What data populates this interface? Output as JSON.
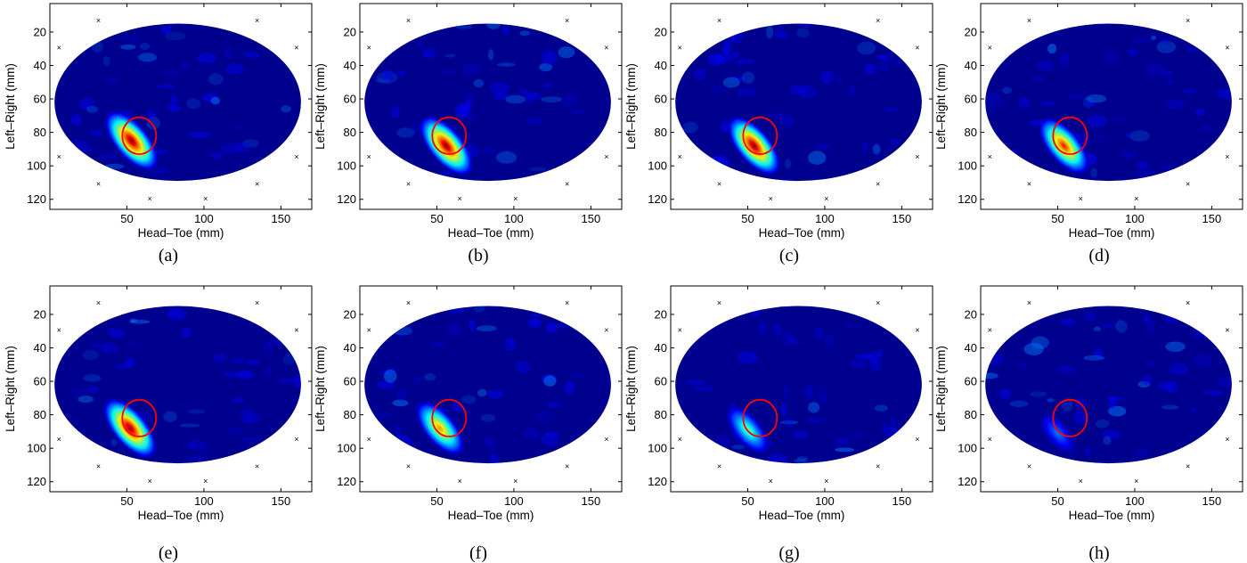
{
  "figure": {
    "marker_color": "#000000",
    "circle_color": "#ff0000",
    "background_color": "#00008f",
    "colormap": [
      "#00008f",
      "#0000ff",
      "#0080ff",
      "#00ffff",
      "#80ff80",
      "#ffff00",
      "#ff8000",
      "#ff0000",
      "#800000"
    ]
  },
  "chart_data": [
    {
      "type": "heatmap",
      "caption": "(a)",
      "xlabel": "Head–Toe (mm)",
      "ylabel": "Left–Right (mm)",
      "xlim": [
        0,
        170
      ],
      "ylim": [
        126,
        3
      ],
      "y_reversed": true,
      "xticks": [
        50,
        100,
        150
      ],
      "yticks": [
        20,
        40,
        60,
        80,
        100,
        120
      ],
      "field": {
        "shape": "ellipse",
        "center": [
          83,
          62
        ],
        "radii": [
          80,
          47
        ]
      },
      "target_circle": {
        "center": [
          58,
          82
        ],
        "radius": 11
      },
      "hotspot": {
        "center": [
          53,
          85
        ],
        "intensity": 1.0
      }
    },
    {
      "type": "heatmap",
      "caption": "(b)",
      "xlabel": "Head–Toe (mm)",
      "ylabel": "Left–Right (mm)",
      "xlim": [
        0,
        170
      ],
      "ylim": [
        126,
        3
      ],
      "y_reversed": true,
      "xticks": [
        50,
        100,
        150
      ],
      "yticks": [
        20,
        40,
        60,
        80,
        100,
        120
      ],
      "field": {
        "shape": "ellipse",
        "center": [
          83,
          62
        ],
        "radii": [
          80,
          47
        ]
      },
      "target_circle": {
        "center": [
          58,
          82
        ],
        "radius": 11
      },
      "hotspot": {
        "center": [
          56,
          88
        ],
        "intensity": 1.0
      }
    },
    {
      "type": "heatmap",
      "caption": "(c)",
      "xlabel": "Head–Toe (mm)",
      "ylabel": "Left–Right (mm)",
      "xlim": [
        0,
        170
      ],
      "ylim": [
        126,
        3
      ],
      "y_reversed": true,
      "xticks": [
        50,
        100,
        150
      ],
      "yticks": [
        20,
        40,
        60,
        80,
        100,
        120
      ],
      "field": {
        "shape": "ellipse",
        "center": [
          83,
          62
        ],
        "radii": [
          80,
          47
        ]
      },
      "target_circle": {
        "center": [
          58,
          82
        ],
        "radius": 11
      },
      "hotspot": {
        "center": [
          54,
          88
        ],
        "intensity": 0.95
      }
    },
    {
      "type": "heatmap",
      "caption": "(d)",
      "xlabel": "Head–Toe (mm)",
      "ylabel": "Left–Right (mm)",
      "xlim": [
        0,
        170
      ],
      "ylim": [
        126,
        3
      ],
      "y_reversed": true,
      "xticks": [
        50,
        100,
        150
      ],
      "yticks": [
        20,
        40,
        60,
        80,
        100,
        120
      ],
      "field": {
        "shape": "ellipse",
        "center": [
          83,
          62
        ],
        "radii": [
          80,
          47
        ]
      },
      "target_circle": {
        "center": [
          58,
          82
        ],
        "radius": 11
      },
      "hotspot": {
        "center": [
          54,
          88
        ],
        "intensity": 0.85
      }
    },
    {
      "type": "heatmap",
      "caption": "(e)",
      "xlabel": "Head–Toe (mm)",
      "ylabel": "Left–Right (mm)",
      "xlim": [
        0,
        170
      ],
      "ylim": [
        126,
        3
      ],
      "y_reversed": true,
      "xticks": [
        50,
        100,
        150
      ],
      "yticks": [
        20,
        40,
        60,
        80,
        100,
        120
      ],
      "field": {
        "shape": "ellipse",
        "center": [
          83,
          62
        ],
        "radii": [
          80,
          47
        ]
      },
      "target_circle": {
        "center": [
          58,
          82
        ],
        "radius": 11
      },
      "hotspot": {
        "center": [
          52,
          88
        ],
        "intensity": 1.0
      }
    },
    {
      "type": "heatmap",
      "caption": "(f)",
      "xlabel": "Head–Toe (mm)",
      "ylabel": "Left–Right (mm)",
      "xlim": [
        0,
        170
      ],
      "ylim": [
        126,
        3
      ],
      "y_reversed": true,
      "xticks": [
        50,
        100,
        150
      ],
      "yticks": [
        20,
        40,
        60,
        80,
        100,
        120
      ],
      "field": {
        "shape": "ellipse",
        "center": [
          83,
          62
        ],
        "radii": [
          80,
          47
        ]
      },
      "target_circle": {
        "center": [
          58,
          82
        ],
        "radius": 11
      },
      "hotspot": {
        "center": [
          52,
          88
        ],
        "intensity": 0.75
      }
    },
    {
      "type": "heatmap",
      "caption": "(g)",
      "xlabel": "Head–Toe (mm)",
      "ylabel": "Left–Right (mm)",
      "xlim": [
        0,
        170
      ],
      "ylim": [
        126,
        3
      ],
      "y_reversed": true,
      "xticks": [
        50,
        100,
        150
      ],
      "yticks": [
        20,
        40,
        60,
        80,
        100,
        120
      ],
      "field": {
        "shape": "ellipse",
        "center": [
          83,
          62
        ],
        "radii": [
          80,
          47
        ]
      },
      "target_circle": {
        "center": [
          58,
          82
        ],
        "radius": 11
      },
      "hotspot": {
        "center": [
          50,
          89
        ],
        "intensity": 0.45
      }
    },
    {
      "type": "heatmap",
      "caption": "(h)",
      "xlabel": "Head–Toe (mm)",
      "ylabel": "Left–Right (mm)",
      "xlim": [
        0,
        170
      ],
      "ylim": [
        126,
        3
      ],
      "y_reversed": true,
      "xticks": [
        50,
        100,
        150
      ],
      "yticks": [
        20,
        40,
        60,
        80,
        100,
        120
      ],
      "field": {
        "shape": "ellipse",
        "center": [
          83,
          62
        ],
        "radii": [
          80,
          47
        ]
      },
      "target_circle": {
        "center": [
          58,
          82
        ],
        "radius": 11
      },
      "hotspot": {
        "center": [
          50,
          91
        ],
        "intensity": 0.3
      }
    }
  ]
}
